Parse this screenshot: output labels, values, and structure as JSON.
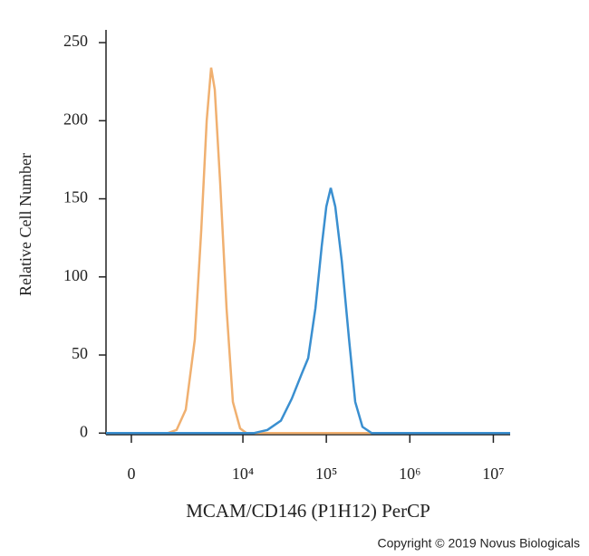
{
  "chart_data": {
    "type": "line",
    "x_label": "MCAM/CD146 (P1H12) PerCP",
    "y_label": "Relative Cell Number",
    "footer": "Copyright © 2019 Novus Biologicals",
    "xscale": "asinh",
    "xscale_cofactor": 925,
    "xlim": [
      -700,
      15900000
    ],
    "ylim": [
      -1,
      257
    ],
    "xticks": [
      0,
      {
        "value": 10000,
        "label": "10⁴"
      },
      {
        "value": 100000,
        "label": "10⁵"
      },
      {
        "value": 1000000,
        "label": "10⁶"
      },
      {
        "value": 10000000,
        "label": "10⁷"
      }
    ],
    "yticks": [
      0,
      50,
      100,
      150,
      200,
      250
    ],
    "series": [
      {
        "color": "#f0b070",
        "x": [
          -700,
          1090,
          1480,
          1970,
          2580,
          3110,
          3630,
          4120,
          4570,
          5320,
          6350,
          7580,
          9270,
          11000,
          15900000
        ],
        "values": [
          0,
          0,
          2,
          15,
          60,
          130,
          200,
          234,
          220,
          160,
          80,
          20,
          3,
          0,
          0
        ]
      },
      {
        "color": "#3a8fd0",
        "x": [
          -700,
          13500,
          19700,
          28600,
          38600,
          50800,
          60600,
          74000,
          88200,
          99900,
          113000,
          128000,
          153000,
          187000,
          222000,
          271000,
          349000,
          15900000
        ],
        "values": [
          0,
          0,
          2,
          8,
          22,
          38,
          48,
          80,
          120,
          145,
          157,
          145,
          110,
          60,
          20,
          4,
          0,
          0
        ]
      }
    ]
  }
}
